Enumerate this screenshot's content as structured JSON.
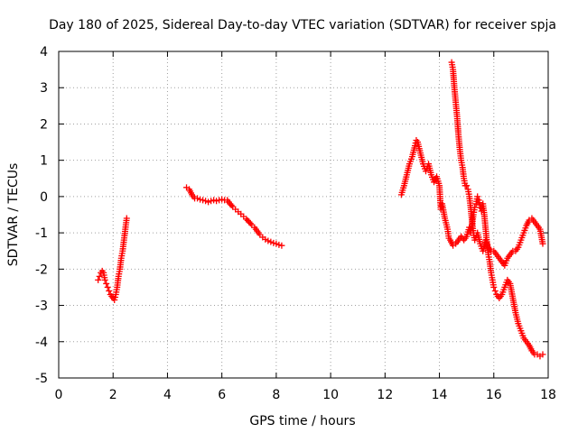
{
  "chart_data": {
    "type": "scatter",
    "title": "Day 180 of 2025, Sidereal Day-to-day VTEC variation (SDTVAR) for receiver spja",
    "xlabel": "GPS time / hours",
    "ylabel": "SDTVAR / TECUs",
    "xlim": [
      0,
      18
    ],
    "ylim": [
      -5,
      4
    ],
    "xticks": [
      "0",
      "2",
      "4",
      "6",
      "8",
      "10",
      "12",
      "14",
      "16",
      "18"
    ],
    "yticks": [
      "-5",
      "-4",
      "-3",
      "-2",
      "-1",
      "0",
      "1",
      "2",
      "3",
      "4"
    ],
    "grid": true,
    "marker": "+",
    "color": "#ff0000",
    "series": [
      {
        "name": "SDTVAR",
        "segments": [
          [
            [
              1.45,
              -2.3
            ],
            [
              1.5,
              -2.2
            ],
            [
              1.55,
              -2.1
            ],
            [
              1.6,
              -2.05
            ],
            [
              1.65,
              -2.1
            ],
            [
              1.7,
              -2.3
            ],
            [
              1.75,
              -2.4
            ],
            [
              1.8,
              -2.5
            ],
            [
              1.85,
              -2.6
            ],
            [
              1.9,
              -2.7
            ],
            [
              1.95,
              -2.75
            ],
            [
              2.0,
              -2.8
            ],
            [
              2.05,
              -2.85
            ],
            [
              2.1,
              -2.7
            ],
            [
              2.15,
              -2.5
            ],
            [
              2.2,
              -2.2
            ],
            [
              2.25,
              -2.0
            ],
            [
              2.3,
              -1.7
            ],
            [
              2.35,
              -1.5
            ],
            [
              2.4,
              -1.2
            ],
            [
              2.45,
              -0.9
            ],
            [
              2.5,
              -0.6
            ]
          ],
          [
            [
              4.7,
              0.25
            ],
            [
              4.8,
              0.2
            ],
            [
              4.9,
              0.05
            ],
            [
              5.0,
              -0.05
            ],
            [
              5.1,
              -0.05
            ],
            [
              5.2,
              -0.08
            ],
            [
              5.3,
              -0.1
            ],
            [
              5.4,
              -0.12
            ],
            [
              5.5,
              -0.15
            ],
            [
              5.6,
              -0.12
            ],
            [
              5.7,
              -0.1
            ],
            [
              5.8,
              -0.12
            ],
            [
              5.9,
              -0.1
            ],
            [
              6.0,
              -0.08
            ],
            [
              6.1,
              -0.1
            ],
            [
              6.2,
              -0.1
            ],
            [
              6.3,
              -0.2
            ],
            [
              6.4,
              -0.28
            ],
            [
              6.5,
              -0.35
            ],
            [
              6.6,
              -0.42
            ],
            [
              6.7,
              -0.48
            ],
            [
              6.8,
              -0.55
            ],
            [
              6.9,
              -0.62
            ],
            [
              7.0,
              -0.7
            ],
            [
              7.1,
              -0.78
            ],
            [
              7.2,
              -0.85
            ],
            [
              7.3,
              -0.95
            ],
            [
              7.4,
              -1.05
            ],
            [
              7.5,
              -1.12
            ],
            [
              7.6,
              -1.18
            ],
            [
              7.7,
              -1.22
            ],
            [
              7.8,
              -1.25
            ],
            [
              7.9,
              -1.28
            ],
            [
              8.0,
              -1.3
            ],
            [
              8.1,
              -1.33
            ],
            [
              8.2,
              -1.35
            ]
          ],
          [
            [
              12.6,
              0.05
            ],
            [
              12.7,
              0.3
            ],
            [
              12.8,
              0.6
            ],
            [
              12.9,
              0.9
            ],
            [
              13.0,
              1.1
            ],
            [
              13.1,
              1.4
            ],
            [
              13.15,
              1.55
            ],
            [
              13.2,
              1.5
            ],
            [
              13.3,
              1.2
            ],
            [
              13.4,
              0.9
            ],
            [
              13.5,
              0.7
            ],
            [
              13.6,
              0.9
            ],
            [
              13.7,
              0.6
            ],
            [
              13.8,
              0.4
            ],
            [
              13.9,
              0.55
            ],
            [
              14.0,
              0.3
            ],
            [
              14.05,
              -0.35
            ],
            [
              14.1,
              -0.2
            ],
            [
              14.2,
              -0.6
            ],
            [
              14.3,
              -0.9
            ],
            [
              14.35,
              -1.15
            ],
            [
              14.4,
              -1.2
            ],
            [
              14.5,
              -1.35
            ],
            [
              14.6,
              -1.3
            ],
            [
              14.7,
              -1.2
            ],
            [
              14.8,
              -1.1
            ],
            [
              14.9,
              -1.2
            ],
            [
              15.0,
              -1.1
            ],
            [
              15.1,
              -0.85
            ],
            [
              15.15,
              -1.0
            ],
            [
              15.2,
              -0.8
            ],
            [
              15.25,
              -0.5
            ],
            [
              15.3,
              -0.3
            ],
            [
              15.35,
              -0.2
            ],
            [
              15.4,
              0.0
            ],
            [
              15.45,
              -0.1
            ],
            [
              15.5,
              -0.3
            ],
            [
              15.55,
              -0.4
            ],
            [
              15.6,
              -0.2
            ],
            [
              15.65,
              -0.5
            ],
            [
              15.7,
              -0.9
            ],
            [
              15.75,
              -1.3
            ],
            [
              15.8,
              -1.6
            ],
            [
              15.85,
              -1.8
            ],
            [
              15.9,
              -2.1
            ],
            [
              15.95,
              -2.3
            ],
            [
              16.0,
              -2.5
            ],
            [
              16.05,
              -2.6
            ],
            [
              16.1,
              -2.7
            ],
            [
              16.15,
              -2.75
            ],
            [
              16.2,
              -2.8
            ],
            [
              16.3,
              -2.7
            ],
            [
              16.4,
              -2.5
            ],
            [
              16.5,
              -2.3
            ],
            [
              16.6,
              -2.4
            ],
            [
              16.7,
              -2.8
            ],
            [
              16.8,
              -3.2
            ],
            [
              16.9,
              -3.5
            ],
            [
              17.0,
              -3.7
            ],
            [
              17.1,
              -3.9
            ],
            [
              17.2,
              -4.0
            ],
            [
              17.3,
              -4.1
            ],
            [
              17.4,
              -4.25
            ],
            [
              17.5,
              -4.35
            ],
            [
              17.6,
              -4.35
            ],
            [
              17.7,
              -4.4
            ],
            [
              17.8,
              -4.35
            ]
          ],
          [
            [
              14.45,
              3.7
            ],
            [
              14.5,
              3.5
            ],
            [
              14.55,
              3.0
            ],
            [
              14.6,
              2.6
            ],
            [
              14.65,
              2.2
            ],
            [
              14.7,
              1.7
            ],
            [
              14.75,
              1.3
            ],
            [
              14.8,
              1.0
            ],
            [
              14.85,
              0.8
            ],
            [
              14.9,
              0.5
            ],
            [
              14.95,
              0.3
            ],
            [
              15.0,
              0.3
            ],
            [
              15.05,
              0.2
            ],
            [
              15.1,
              0.0
            ],
            [
              15.15,
              -0.3
            ],
            [
              15.2,
              -0.7
            ],
            [
              15.25,
              -1.0
            ],
            [
              15.3,
              -1.2
            ],
            [
              15.4,
              -1.0
            ],
            [
              15.5,
              -1.3
            ],
            [
              15.6,
              -1.5
            ],
            [
              15.7,
              -1.2
            ],
            [
              15.8,
              -1.4
            ],
            [
              15.9,
              -1.5
            ],
            [
              16.0,
              -1.5
            ],
            [
              16.1,
              -1.6
            ],
            [
              16.2,
              -1.7
            ],
            [
              16.3,
              -1.8
            ],
            [
              16.4,
              -1.9
            ],
            [
              16.5,
              -1.7
            ],
            [
              16.6,
              -1.6
            ],
            [
              16.7,
              -1.5
            ],
            [
              16.8,
              -1.5
            ],
            [
              16.9,
              -1.4
            ],
            [
              17.0,
              -1.2
            ],
            [
              17.1,
              -1.0
            ],
            [
              17.2,
              -0.8
            ],
            [
              17.3,
              -0.65
            ],
            [
              17.4,
              -0.6
            ],
            [
              17.5,
              -0.7
            ],
            [
              17.6,
              -0.8
            ],
            [
              17.7,
              -0.9
            ],
            [
              17.8,
              -1.3
            ]
          ]
        ]
      }
    ]
  }
}
